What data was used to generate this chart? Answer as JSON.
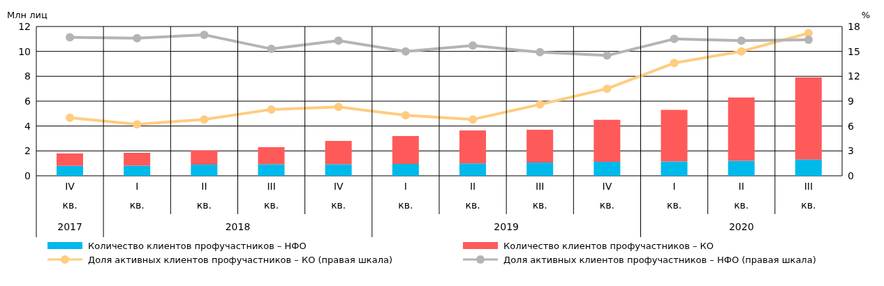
{
  "chart_data": {
    "type": "bar",
    "ylabel": "Млн лиц",
    "y2label": "%",
    "categories": [
      "IV кв.",
      "I кв.",
      "II кв.",
      "III кв.",
      "IV кв.",
      "I кв.",
      "II кв.",
      "III кв.",
      "IV кв.",
      "I кв.",
      "II кв.",
      "III кв."
    ],
    "annotations": [
      "2017",
      "2018",
      "2019",
      "2020"
    ],
    "stacked": true,
    "series": [
      {
        "name": "Количество клиентов профучастников – НФО",
        "color": "#00b9eb",
        "values": [
          0.8,
          0.82,
          0.9,
          0.92,
          0.93,
          0.95,
          1.0,
          1.07,
          1.12,
          1.15,
          1.2,
          1.3
        ]
      },
      {
        "name": "Количество клиентов профучастников – КО",
        "color": "#ff5a5a",
        "values": [
          1.0,
          1.03,
          1.15,
          1.38,
          1.87,
          2.25,
          2.65,
          2.63,
          3.38,
          4.15,
          5.1,
          6.6
        ]
      },
      {
        "name": "Доля активных клиентов профучастников – КО (правая шкала)",
        "type": "line",
        "axis": "y2",
        "color": "#ffcc80",
        "values": [
          7.0,
          6.2,
          6.8,
          8.0,
          8.3,
          7.3,
          6.8,
          8.6,
          10.5,
          13.6,
          15.0,
          17.2
        ]
      },
      {
        "name": "Доля активных клиентов профучастников – НФО (правая шкала)",
        "type": "line",
        "axis": "y2",
        "color": "#b4b4b4",
        "values": [
          16.7,
          16.6,
          17.0,
          15.3,
          16.3,
          15.0,
          15.7,
          14.9,
          14.5,
          16.5,
          16.3,
          16.4
        ]
      }
    ],
    "ylim": [
      0,
      12
    ],
    "yticks": [
      0,
      2,
      4,
      6,
      8,
      10,
      12
    ],
    "y2lim": [
      0,
      18
    ],
    "y2ticks": [
      0,
      3,
      6,
      9,
      12,
      15,
      18
    ],
    "grid": true,
    "legend": "bottom",
    "marker": "circle",
    "line_style": "solid"
  }
}
